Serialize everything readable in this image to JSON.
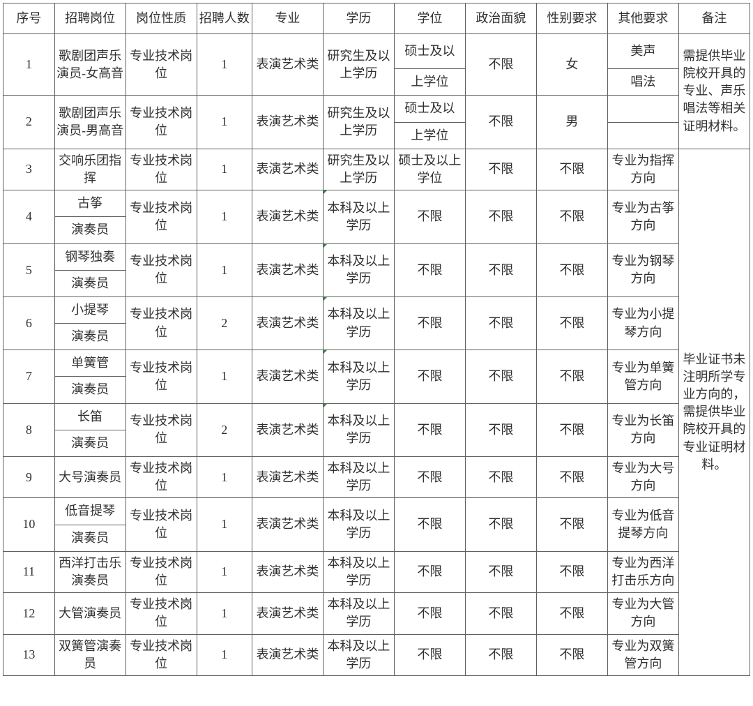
{
  "colors": {
    "border": "#606060",
    "text": "#303030",
    "background": "#ffffff",
    "corner_mark": "#2e8b3e"
  },
  "typography": {
    "font_family": "SimSun",
    "font_size_pt": 14
  },
  "headers": [
    "序号",
    "招聘岗位",
    "岗位性质",
    "招聘人数",
    "专业",
    "学历",
    "学位",
    "政治面貌",
    "性别要求",
    "其他要求",
    "备注"
  ],
  "remarks": {
    "group1": "需提供毕业院校开具的专业、声乐唱法等相关证明材料。",
    "group2": "毕业证书未注明所学专业方向的，需提供毕业院校开具的专业证明材料。"
  },
  "rows": [
    {
      "seq": "1",
      "position": "歌剧团声乐演员-女高音",
      "type": "专业技术岗位",
      "count": "1",
      "major": "表演艺术类",
      "edu": "研究生及以上学历",
      "degree_top": "硕士及以",
      "degree_bot": "上学位",
      "politic": "不限",
      "gender": "女",
      "other_top": "美声",
      "other_bot": "唱法"
    },
    {
      "seq": "2",
      "position": "歌剧团声乐演员-男高音",
      "type": "专业技术岗位",
      "count": "1",
      "major": "表演艺术类",
      "edu": "研究生及以上学历",
      "degree_top": "硕士及以",
      "degree_bot": "上学位",
      "politic": "不限",
      "gender": "男",
      "other_top": "",
      "other_bot": ""
    },
    {
      "seq": "3",
      "position": "交响乐团指挥",
      "type": "专业技术岗位",
      "count": "1",
      "major": "表演艺术类",
      "edu": "研究生及以上学历",
      "degree": "硕士及以上学位",
      "politic": "不限",
      "gender": "不限",
      "other": "专业为指挥方向"
    },
    {
      "seq": "4",
      "position_top": "古筝",
      "position_bot": "演奏员",
      "type": "专业技术岗位",
      "count": "1",
      "major": "表演艺术类",
      "edu": "本科及以上学历",
      "degree": "不限",
      "politic": "不限",
      "gender": "不限",
      "other": "专业为古筝方向"
    },
    {
      "seq": "5",
      "position_top": "钢琴独奏",
      "position_bot": "演奏员",
      "type": "专业技术岗位",
      "count": "1",
      "major": "表演艺术类",
      "edu": "本科及以上学历",
      "degree": "不限",
      "politic": "不限",
      "gender": "不限",
      "other": "专业为钢琴方向"
    },
    {
      "seq": "6",
      "position_top": "小提琴",
      "position_bot": "演奏员",
      "type": "专业技术岗位",
      "count": "2",
      "major": "表演艺术类",
      "edu": "本科及以上学历",
      "degree": "不限",
      "politic": "不限",
      "gender": "不限",
      "other": "专业为小提琴方向"
    },
    {
      "seq": "7",
      "position_top": "单簧管",
      "position_bot": "演奏员",
      "type": "专业技术岗位",
      "count": "1",
      "major": "表演艺术类",
      "edu": "本科及以上学历",
      "degree": "不限",
      "politic": "不限",
      "gender": "不限",
      "other": "专业为单簧管方向"
    },
    {
      "seq": "8",
      "position_top": "长笛",
      "position_bot": "演奏员",
      "type": "专业技术岗位",
      "count": "2",
      "major": "表演艺术类",
      "edu": "本科及以上学历",
      "degree": "不限",
      "politic": "不限",
      "gender": "不限",
      "other": "专业为长笛方向"
    },
    {
      "seq": "9",
      "position": "大号演奏员",
      "type": "专业技术岗位",
      "count": "1",
      "major": "表演艺术类",
      "edu": "本科及以上学历",
      "degree": "不限",
      "politic": "不限",
      "gender": "不限",
      "other": "专业为大号方向"
    },
    {
      "seq": "10",
      "position_top": "低音提琴",
      "position_bot": "演奏员",
      "type": "专业技术岗位",
      "count": "1",
      "major": "表演艺术类",
      "edu": "本科及以上学历",
      "degree": "不限",
      "politic": "不限",
      "gender": "不限",
      "other": "专业为低音提琴方向"
    },
    {
      "seq": "11",
      "position": "西洋打击乐演奏员",
      "type": "专业技术岗位",
      "count": "1",
      "major": "表演艺术类",
      "edu": "本科及以上学历",
      "degree": "不限",
      "politic": "不限",
      "gender": "不限",
      "other": "专业为西洋打击乐方向"
    },
    {
      "seq": "12",
      "position": "大管演奏员",
      "type": "专业技术岗位",
      "count": "1",
      "major": "表演艺术类",
      "edu": "本科及以上学历",
      "degree": "不限",
      "politic": "不限",
      "gender": "不限",
      "other": "专业为大管方向"
    },
    {
      "seq": "13",
      "position": "双簧管演奏员",
      "type": "专业技术岗位",
      "count": "1",
      "major": "表演艺术类",
      "edu": "本科及以上学历",
      "degree": "不限",
      "politic": "不限",
      "gender": "不限",
      "other": "专业为双簧管方向"
    }
  ]
}
